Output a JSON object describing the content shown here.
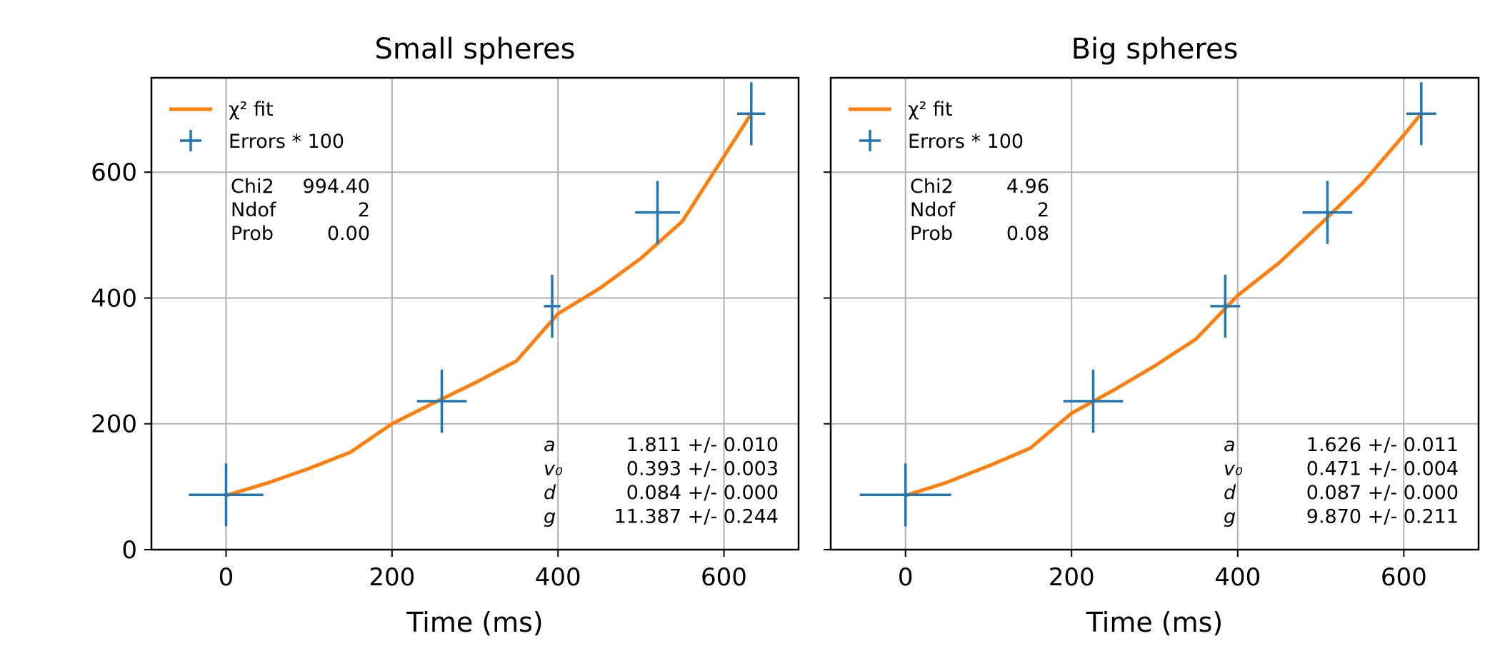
{
  "chart_data": [
    {
      "type": "scatter",
      "title": "Small spheres",
      "xlabel": "Time (ms)",
      "ylabel": "",
      "xlim": [
        -90,
        690
      ],
      "ylim": [
        0,
        750
      ],
      "xticks": [
        0,
        200,
        400,
        600
      ],
      "yticks": [
        0,
        200,
        400,
        600
      ],
      "show_yticklabels": true,
      "grid": true,
      "legend_location": "top-left",
      "legend": {
        "fit": "χ² fit",
        "errors": "Errors * 100"
      },
      "colors": {
        "fit": "#ff7f0e",
        "points": "#1f77b4",
        "grid": "#b0b0b0"
      },
      "series": [
        {
          "kind": "errorbar",
          "x": [
            0,
            260,
            393,
            520,
            633
          ],
          "y": [
            87,
            236,
            387,
            536,
            693
          ],
          "xerr": [
            45,
            30,
            10,
            27,
            17
          ],
          "yerr": [
            50,
            50,
            50,
            50,
            50
          ]
        },
        {
          "kind": "line",
          "x": [
            0,
            50,
            100,
            150,
            200,
            250,
            300,
            350,
            400,
            450,
            500,
            550,
            600,
            633
          ],
          "y": [
            86,
            106,
            129,
            155,
            200,
            233,
            265,
            300,
            375,
            415,
            463,
            522,
            625,
            693
          ]
        }
      ],
      "stats": [
        {
          "label": "Chi2",
          "value": "994.40"
        },
        {
          "label": "Ndof",
          "value": "2"
        },
        {
          "label": "Prob",
          "value": "0.00"
        }
      ],
      "params": [
        {
          "symbol": "a",
          "value": "1.811 +/- 0.010"
        },
        {
          "symbol": "v₀",
          "value": "0.393 +/- 0.003"
        },
        {
          "symbol": "d",
          "value": "0.084 +/- 0.000"
        },
        {
          "symbol": "g",
          "value": "11.387 +/- 0.244"
        }
      ]
    },
    {
      "type": "scatter",
      "title": "Big spheres",
      "xlabel": "Time (ms)",
      "ylabel": "",
      "xlim": [
        -90,
        690
      ],
      "ylim": [
        0,
        750
      ],
      "xticks": [
        0,
        200,
        400,
        600
      ],
      "yticks": [
        0,
        200,
        400,
        600
      ],
      "show_yticklabels": false,
      "grid": true,
      "legend_location": "top-left",
      "legend": {
        "fit": "χ² fit",
        "errors": "Errors * 100"
      },
      "colors": {
        "fit": "#ff7f0e",
        "points": "#1f77b4",
        "grid": "#b0b0b0"
      },
      "series": [
        {
          "kind": "errorbar",
          "x": [
            0,
            226,
            385,
            508,
            621
          ],
          "y": [
            87,
            236,
            387,
            536,
            693
          ],
          "xerr": [
            55,
            36,
            18,
            30,
            18
          ],
          "yerr": [
            50,
            50,
            50,
            50,
            50
          ]
        },
        {
          "kind": "line",
          "x": [
            0,
            50,
            100,
            150,
            200,
            250,
            300,
            350,
            400,
            450,
            500,
            550,
            600,
            621
          ],
          "y": [
            86,
            107,
            133,
            161,
            217,
            253,
            292,
            335,
            404,
            456,
            518,
            582,
            659,
            693
          ]
        }
      ],
      "stats": [
        {
          "label": "Chi2",
          "value": "4.96"
        },
        {
          "label": "Ndof",
          "value": "2"
        },
        {
          "label": "Prob",
          "value": "0.08"
        }
      ],
      "params": [
        {
          "symbol": "a",
          "value": "1.626 +/- 0.011"
        },
        {
          "symbol": "v₀",
          "value": "0.471 +/- 0.004"
        },
        {
          "symbol": "d",
          "value": "0.087 +/- 0.000"
        },
        {
          "symbol": "g",
          "value": "9.870 +/- 0.211"
        }
      ]
    }
  ]
}
